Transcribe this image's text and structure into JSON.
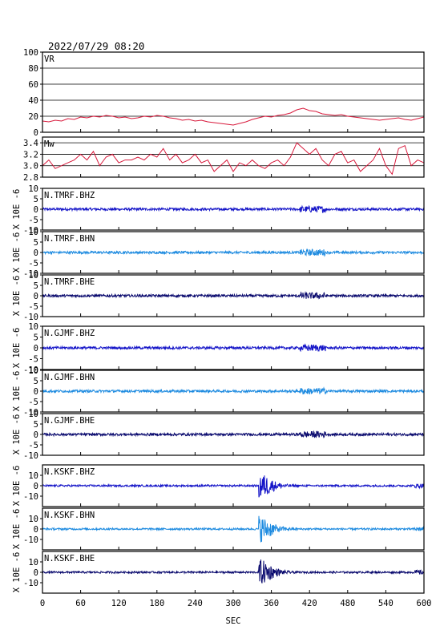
{
  "header": {
    "timestamp": "2022/07/29 08:20"
  },
  "colors": {
    "vr": "#d81a3c",
    "mw": "#d81a3c",
    "dark": "#0a0a6e",
    "blue": "#1515c8",
    "light": "#1e8be0",
    "grid": "#000000"
  },
  "chart_data": {
    "type": "line",
    "xlabel": "SEC",
    "xlim": [
      0,
      600
    ],
    "xticks": [
      "0",
      "60",
      "120",
      "180",
      "240",
      "300",
      "360",
      "420",
      "480",
      "540",
      "600"
    ],
    "panels": [
      {
        "id": "vr",
        "label": "VR",
        "ylim": [
          0,
          100
        ],
        "yticks": [
          "100",
          "80",
          "60",
          "40",
          "20",
          "0"
        ],
        "gridlines": [
          20,
          40,
          60,
          80
        ],
        "series": {
          "x": [
            0,
            10,
            20,
            30,
            40,
            50,
            60,
            70,
            80,
            90,
            100,
            110,
            120,
            130,
            140,
            150,
            160,
            170,
            180,
            190,
            200,
            210,
            220,
            230,
            240,
            250,
            260,
            270,
            280,
            290,
            300,
            310,
            320,
            330,
            340,
            350,
            360,
            370,
            380,
            390,
            400,
            410,
            420,
            430,
            440,
            450,
            460,
            470,
            480,
            490,
            500,
            510,
            520,
            530,
            540,
            550,
            560,
            570,
            580,
            590,
            600
          ],
          "y": [
            14,
            13,
            15,
            14,
            17,
            16,
            19,
            18,
            20,
            19,
            21,
            20,
            18,
            19,
            17,
            18,
            20,
            19,
            21,
            20,
            18,
            17,
            15,
            16,
            14,
            15,
            13,
            12,
            11,
            10,
            9,
            11,
            13,
            16,
            18,
            20,
            19,
            21,
            22,
            24,
            28,
            30,
            27,
            26,
            23,
            22,
            21,
            22,
            20,
            19,
            18,
            17,
            16,
            15,
            16,
            17,
            18,
            16,
            15,
            17,
            19
          ]
        }
      },
      {
        "id": "mw",
        "label": "Mw",
        "ylim": [
          2.8,
          3.5
        ],
        "yticks": [
          "3.4",
          "3.2",
          "3.0",
          "2.8"
        ],
        "gridlines": [
          3.0,
          3.2,
          3.4
        ],
        "series": {
          "x": [
            0,
            10,
            20,
            30,
            40,
            50,
            60,
            70,
            80,
            90,
            100,
            110,
            120,
            130,
            140,
            150,
            160,
            170,
            180,
            190,
            200,
            210,
            220,
            230,
            240,
            250,
            260,
            270,
            280,
            290,
            300,
            310,
            320,
            330,
            340,
            350,
            360,
            370,
            380,
            390,
            400,
            410,
            420,
            430,
            440,
            450,
            460,
            470,
            480,
            490,
            500,
            510,
            520,
            530,
            540,
            550,
            560,
            570,
            580,
            590,
            600
          ],
          "y": [
            3.0,
            3.1,
            2.95,
            3.0,
            3.05,
            3.1,
            3.2,
            3.1,
            3.25,
            3.0,
            3.15,
            3.2,
            3.05,
            3.1,
            3.1,
            3.15,
            3.1,
            3.2,
            3.15,
            3.3,
            3.1,
            3.2,
            3.05,
            3.1,
            3.2,
            3.05,
            3.1,
            2.9,
            3.0,
            3.1,
            2.9,
            3.05,
            3.0,
            3.1,
            3.0,
            2.95,
            3.05,
            3.1,
            3.0,
            3.15,
            3.4,
            3.3,
            3.2,
            3.3,
            3.1,
            3.0,
            3.2,
            3.25,
            3.05,
            3.1,
            2.9,
            3.0,
            3.1,
            3.3,
            3.0,
            2.85,
            3.3,
            3.35,
            3.0,
            3.1,
            3.05
          ]
        }
      },
      {
        "id": "tmrf-bhz",
        "label": "N.TMRF.BHZ",
        "color_key": "blue",
        "ylabel": "X 10E -6",
        "ylim": [
          -10,
          10
        ],
        "yticks": [
          "10",
          "5",
          "0",
          "-5",
          "-10"
        ]
      },
      {
        "id": "tmrf-bhn",
        "label": "N.TMRF.BHN",
        "color_key": "light",
        "ylabel": "X 10E -6",
        "ylim": [
          -10,
          10
        ],
        "yticks": [
          "10",
          "5",
          "0",
          "-5",
          "-10"
        ]
      },
      {
        "id": "tmrf-bhe",
        "label": "N.TMRF.BHE",
        "color_key": "dark",
        "ylabel": "X 10E -6",
        "ylim": [
          -10,
          10
        ],
        "yticks": [
          "10",
          "5",
          "0",
          "-5",
          "-10"
        ]
      },
      {
        "id": "gjmf-bhz",
        "label": "N.GJMF.BHZ",
        "color_key": "blue",
        "ylabel": "X 10E -6",
        "ylim": [
          -10,
          10
        ],
        "yticks": [
          "10",
          "5",
          "0",
          "-5",
          "-10"
        ]
      },
      {
        "id": "gjmf-bhn",
        "label": "N.GJMF.BHN",
        "color_key": "light",
        "ylabel": "X 10E -6",
        "ylim": [
          -10,
          10
        ],
        "yticks": [
          "10",
          "5",
          "0",
          "-5",
          "-10"
        ]
      },
      {
        "id": "gjmf-bhe",
        "label": "N.GJMF.BHE",
        "color_key": "dark",
        "ylabel": "X 10E -6",
        "ylim": [
          -10,
          10
        ],
        "yticks": [
          "10",
          "5",
          "0",
          "-5",
          "-10"
        ]
      },
      {
        "id": "kskf-bhz",
        "label": "N.KSKF.BHZ",
        "color_key": "blue",
        "ylabel": "X 10E -6",
        "ylim": [
          -20,
          20
        ],
        "yticks": [
          "10",
          "0",
          "-10"
        ]
      },
      {
        "id": "kskf-bhn",
        "label": "N.KSKF.BHN",
        "color_key": "light",
        "ylabel": "X 10E -6",
        "ylim": [
          -20,
          20
        ],
        "yticks": [
          "10",
          "0",
          "-10"
        ]
      },
      {
        "id": "kskf-bhe",
        "label": "N.KSKF.BHE",
        "color_key": "dark",
        "ylabel": "X 10E -6",
        "ylim": [
          -20,
          20
        ],
        "yticks": [
          "10",
          "0",
          "-10"
        ]
      }
    ]
  }
}
